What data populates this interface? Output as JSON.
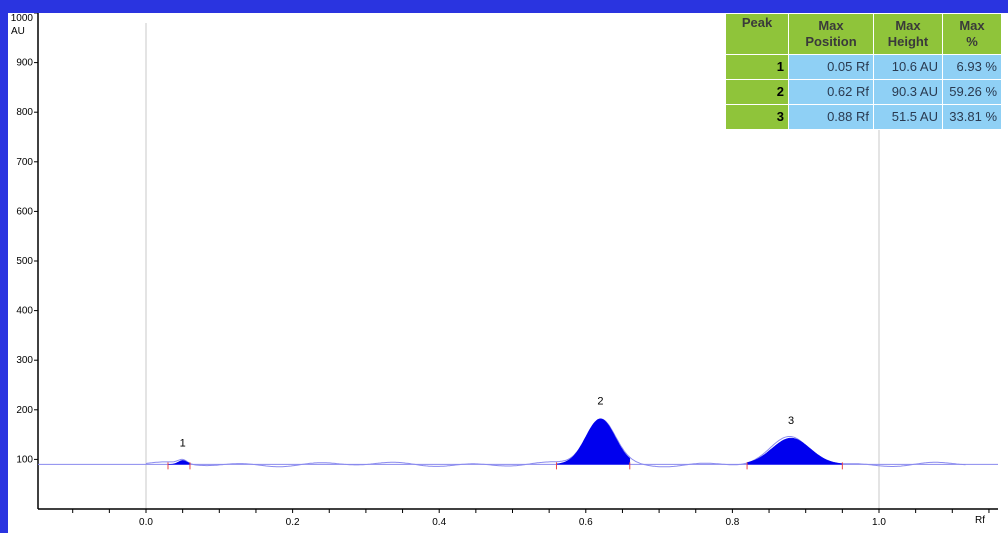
{
  "chart_data": {
    "type": "line",
    "xlabel": "Rf",
    "ylabel": "AU",
    "xlim": [
      -0.15,
      1.16
    ],
    "ylim": [
      0,
      1000
    ],
    "x_ticks": [
      "0.0",
      "0.2",
      "0.4",
      "0.6",
      "0.8",
      "1.0"
    ],
    "y_ticks": [
      "100",
      "200",
      "300",
      "400",
      "500",
      "600",
      "700",
      "800",
      "900",
      "1000"
    ],
    "baseline_au": 90,
    "peaks": [
      {
        "label": "1",
        "position": 0.05,
        "apex_au": 98,
        "start": 0.03,
        "end": 0.06
      },
      {
        "label": "2",
        "position": 0.62,
        "apex_au": 182,
        "start": 0.56,
        "end": 0.66
      },
      {
        "label": "3",
        "position": 0.88,
        "apex_au": 143,
        "start": 0.82,
        "end": 0.95
      }
    ],
    "colors": {
      "fill": "#0000ee",
      "trace": "#8a8aee",
      "baseline": "#8a8aee",
      "marker": "#ee4444"
    }
  },
  "table": {
    "headers": [
      {
        "line1": "Peak",
        "line2": ""
      },
      {
        "line1": "Max",
        "line2": "Position"
      },
      {
        "line1": "Max",
        "line2": "Height"
      },
      {
        "line1": "Max",
        "line2": "%"
      }
    ],
    "rows": [
      {
        "peak": "1",
        "position": "0.05 Rf",
        "height": "10.6 AU",
        "percent": "6.93 %"
      },
      {
        "peak": "2",
        "position": "0.62 Rf",
        "height": "90.3 AU",
        "percent": "59.26 %"
      },
      {
        "peak": "3",
        "position": "0.88 Rf",
        "height": "51.5 AU",
        "percent": "33.81 %"
      }
    ]
  }
}
